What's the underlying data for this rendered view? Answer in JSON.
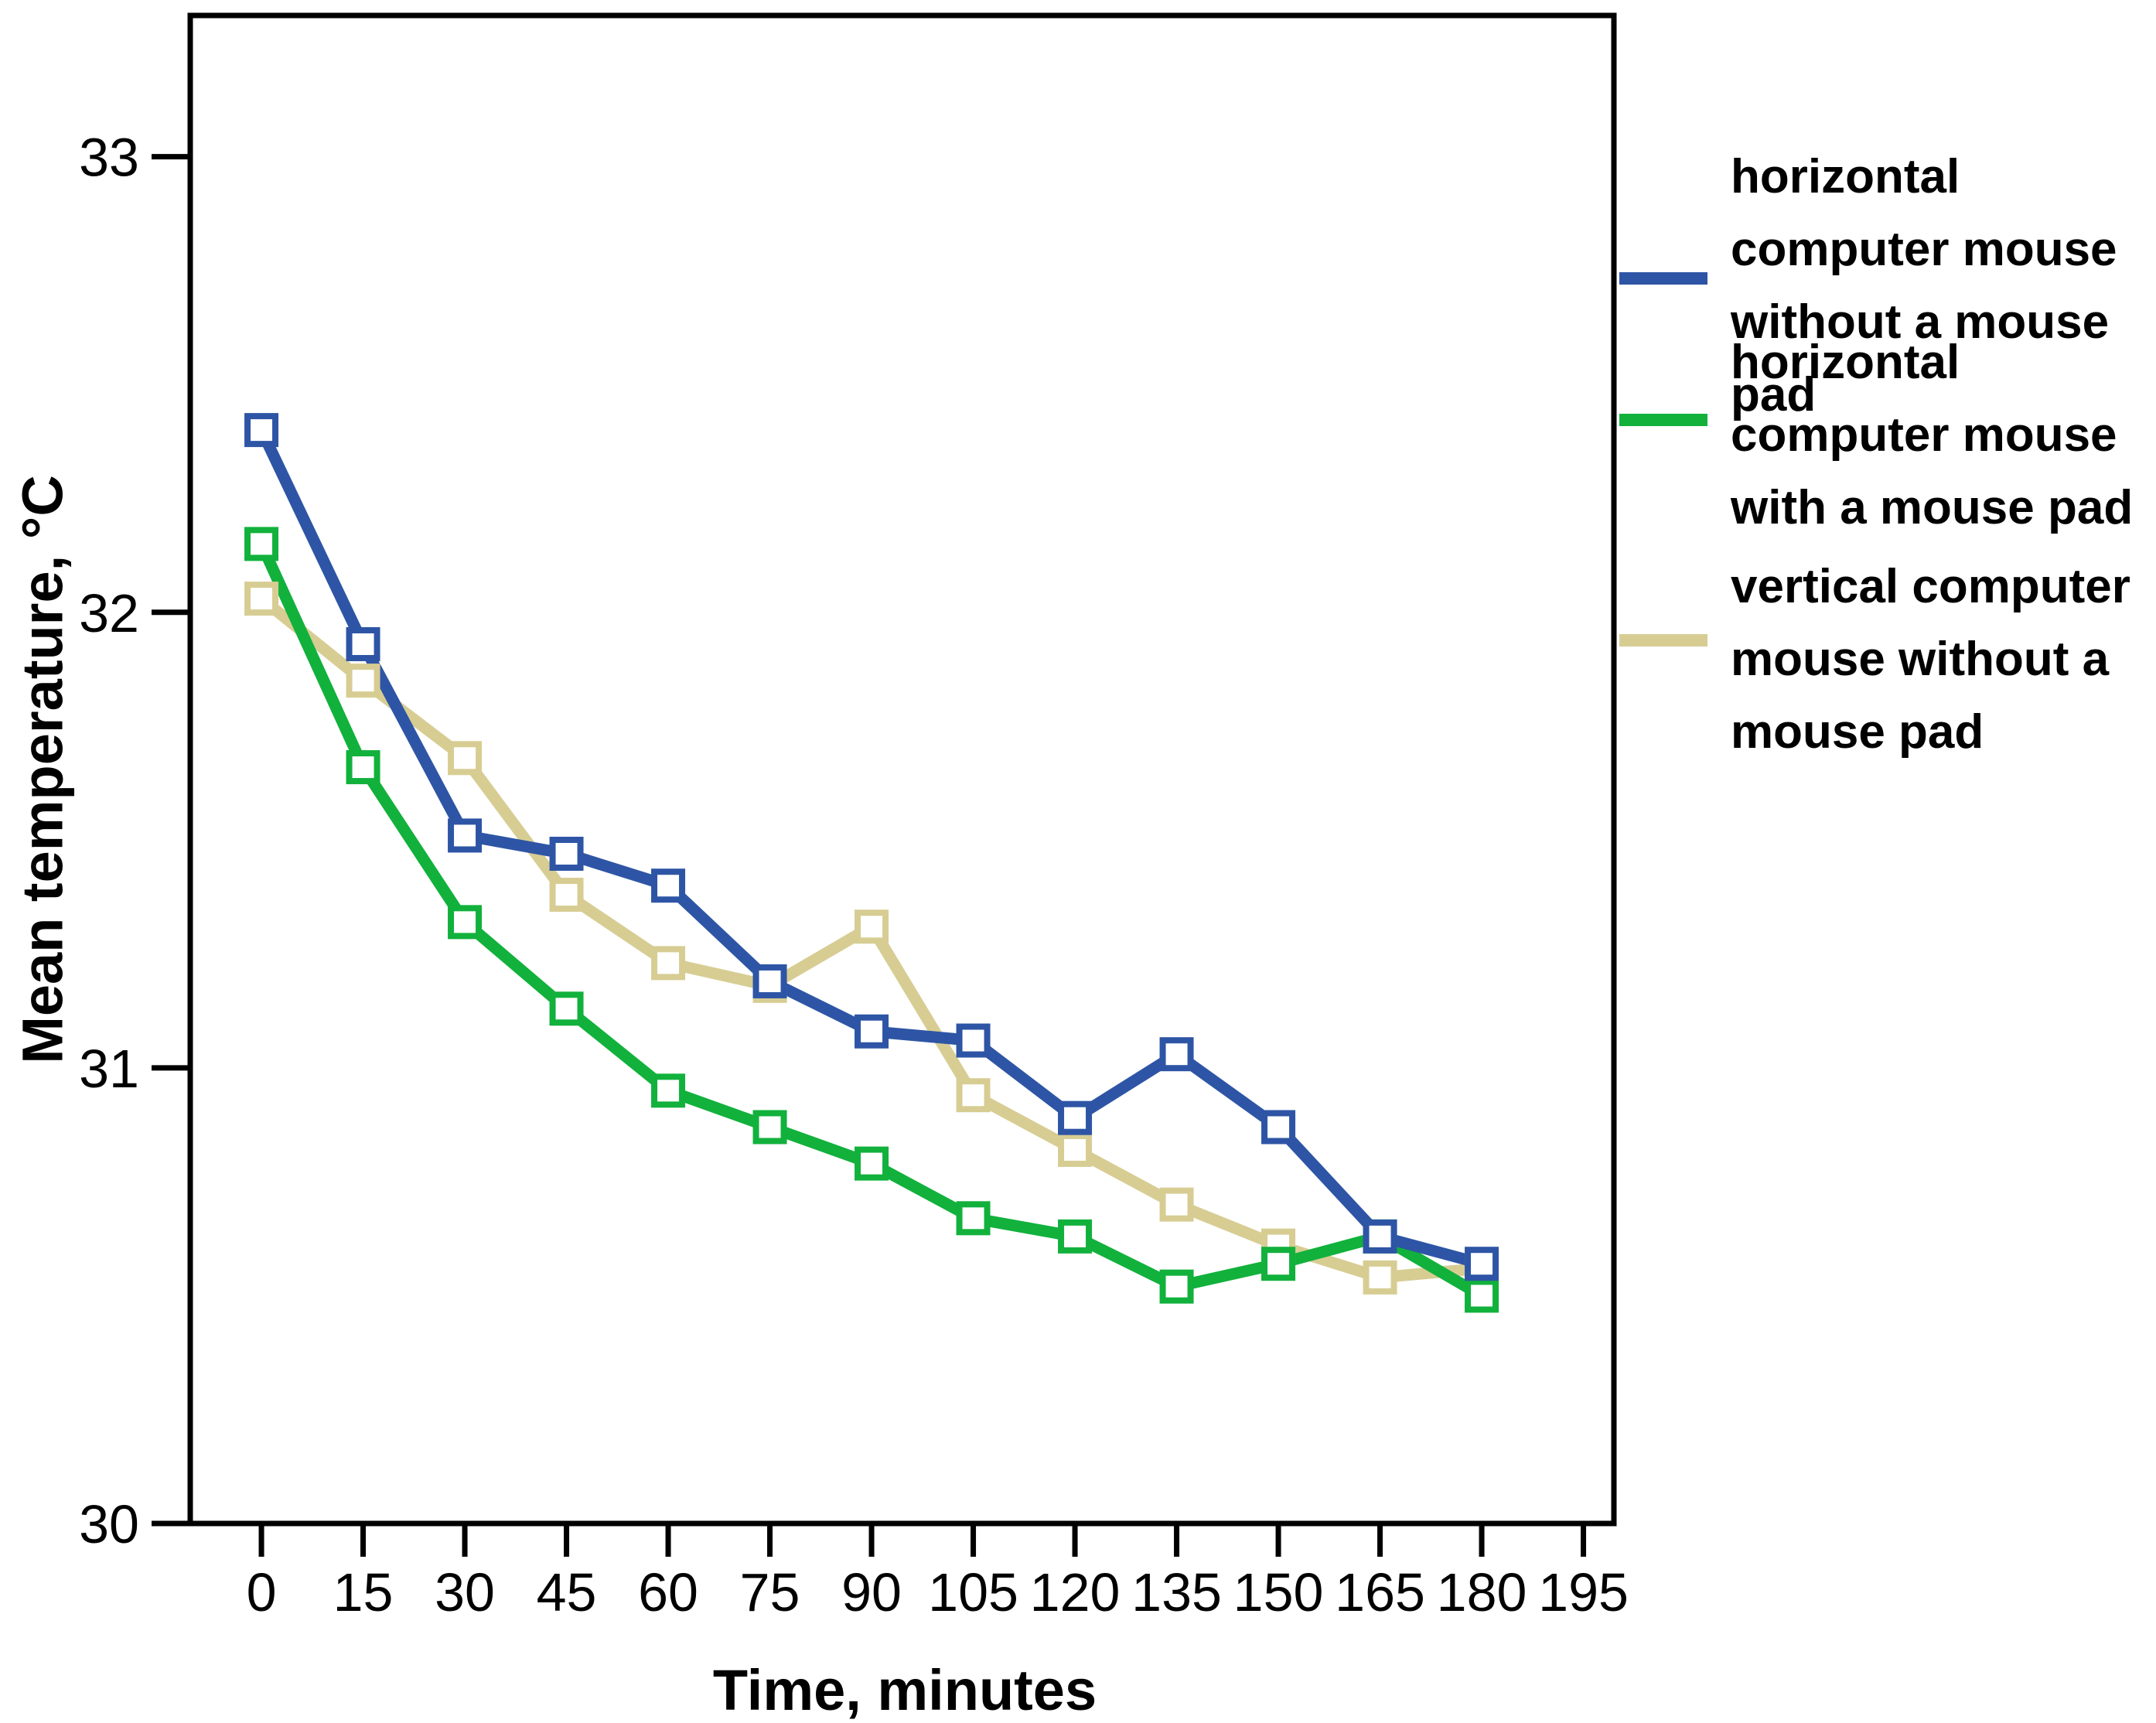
{
  "figure": {
    "background": "#ffffff",
    "axis_color": "#000000"
  },
  "chart_data": {
    "type": "line",
    "title": "",
    "xlabel": "Time, minutes",
    "ylabel": "Mean temperature, °C",
    "x": [
      0,
      15,
      30,
      45,
      60,
      75,
      90,
      105,
      120,
      135,
      150,
      165,
      180
    ],
    "series": [
      {
        "key": "horizontal-mouse-without-pad",
        "name": "horizontal computer mouse without a mouse pad",
        "color": "#2E55A5",
        "values": [
          32.4,
          31.93,
          31.51,
          31.47,
          31.4,
          31.19,
          31.08,
          31.06,
          30.89,
          31.03,
          30.87,
          30.63,
          30.57
        ]
      },
      {
        "key": "horizontal-mouse-with-pad",
        "name": "horizontal computer mouse with a mouse pad",
        "color": "#11B13C",
        "values": [
          32.15,
          31.66,
          31.32,
          31.13,
          30.95,
          30.87,
          30.79,
          30.67,
          30.63,
          30.52,
          30.57,
          30.63,
          30.5
        ]
      },
      {
        "key": "vertical-mouse-without-pad",
        "name": "vertical computer mouse without a mouse pad",
        "color": "#D7CD93",
        "values": [
          32.03,
          31.85,
          31.68,
          31.38,
          31.23,
          31.18,
          31.31,
          30.94,
          30.82,
          30.7,
          30.61,
          30.54,
          30.56
        ]
      }
    ],
    "x_ticks": [
      0,
      15,
      30,
      45,
      60,
      75,
      90,
      105,
      120,
      135,
      150,
      165,
      180,
      195
    ],
    "y_ticks": [
      30,
      31,
      32,
      33
    ],
    "xlim": [
      -10.5,
      199.5
    ],
    "ylim": [
      30,
      33.31
    ],
    "grid": false,
    "legend_position": "right",
    "marker": "open-square"
  }
}
